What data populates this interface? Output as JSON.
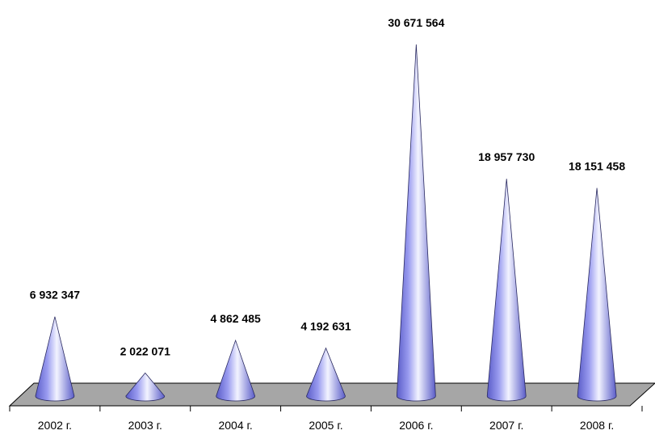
{
  "chart_data": {
    "type": "bar",
    "bar_shape": "cone",
    "categories": [
      "2002 г.",
      "2003 г.",
      "2004 г.",
      "2005 г.",
      "2006 г.",
      "2007 г.",
      "2008 г."
    ],
    "values": [
      6932347,
      2022071,
      4862485,
      4192631,
      30671564,
      18957730,
      18151458
    ],
    "value_labels": [
      "6 932 347",
      "2 022 071",
      "4 862 485",
      "4 192 631",
      "30 671 564",
      "18 957 730",
      "18 151 458"
    ],
    "grid": false,
    "legend": "none",
    "colors": {
      "cone": "#9a9cf0",
      "cone_highlight": "#f2f3ff",
      "cone_shadow": "#5a5cc8",
      "floor": "#a6a6a6",
      "floor_edge": "#000000"
    }
  }
}
